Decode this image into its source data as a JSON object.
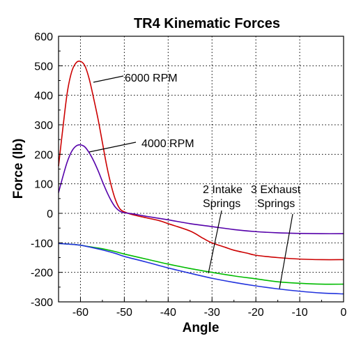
{
  "chart_data": {
    "type": "line",
    "title": "TR4 Kinematic Forces",
    "xlabel": "Angle",
    "ylabel": "Force (lb)",
    "xlim": [
      -65,
      0
    ],
    "ylim": [
      -300,
      600
    ],
    "xticks": [
      -60,
      -50,
      -40,
      -30,
      -20,
      -10,
      0
    ],
    "yticks": [
      -300,
      -200,
      -100,
      0,
      100,
      200,
      300,
      400,
      500,
      600
    ],
    "grid": true,
    "series": [
      {
        "name": "6000 RPM",
        "color": "#cc0000",
        "x": [
          -65,
          -64,
          -63,
          -62,
          -61,
          -60,
          -59,
          -58,
          -57,
          -56,
          -55,
          -54,
          -53,
          -52,
          -51,
          -50,
          -48,
          -45,
          -42,
          -40,
          -35,
          -32,
          -30,
          -27,
          -25,
          -22,
          -20,
          -15,
          -10,
          -5,
          0
        ],
        "y": [
          160,
          290,
          410,
          480,
          510,
          515,
          500,
          455,
          390,
          320,
          240,
          160,
          95,
          45,
          15,
          5,
          -5,
          -15,
          -25,
          -35,
          -60,
          -85,
          -100,
          -115,
          -125,
          -135,
          -142,
          -150,
          -155,
          -157,
          -157
        ]
      },
      {
        "name": "4000 RPM",
        "color": "#5500aa",
        "x": [
          -65,
          -64,
          -63,
          -62,
          -61,
          -60,
          -59,
          -58,
          -57,
          -56,
          -55,
          -54,
          -53,
          -52,
          -51,
          -50,
          -48,
          -45,
          -40,
          -35,
          -30,
          -25,
          -20,
          -15,
          -10,
          -5,
          0
        ],
        "y": [
          70,
          125,
          175,
          210,
          228,
          232,
          225,
          205,
          178,
          145,
          108,
          73,
          43,
          20,
          7,
          2,
          -2,
          -10,
          -22,
          -35,
          -45,
          -55,
          -62,
          -66,
          -68,
          -69,
          -69
        ]
      },
      {
        "name": "2 Intake Springs",
        "color": "#00bb00",
        "x": [
          -65,
          -62,
          -60,
          -58,
          -55,
          -52,
          -50,
          -45,
          -40,
          -35,
          -30,
          -25,
          -20,
          -15,
          -10,
          -5,
          0
        ],
        "y": [
          -102,
          -105,
          -108,
          -113,
          -120,
          -130,
          -138,
          -155,
          -172,
          -187,
          -200,
          -212,
          -222,
          -232,
          -237,
          -240,
          -240
        ]
      },
      {
        "name": "3 Exhaust Springs",
        "color": "#2233dd",
        "x": [
          -65,
          -62,
          -60,
          -58,
          -55,
          -52,
          -50,
          -45,
          -40,
          -35,
          -30,
          -25,
          -20,
          -15,
          -10,
          -5,
          0
        ],
        "y": [
          -102,
          -105,
          -108,
          -114,
          -124,
          -136,
          -146,
          -165,
          -185,
          -203,
          -220,
          -234,
          -246,
          -256,
          -264,
          -270,
          -273
        ]
      }
    ],
    "annotations": [
      {
        "lines": [
          "6000 RPM"
        ]
      },
      {
        "lines": [
          "4000 RPM"
        ]
      },
      {
        "lines": [
          "2 Intake",
          "Springs"
        ]
      },
      {
        "lines": [
          "3 Exhaust",
          "Springs"
        ]
      }
    ]
  }
}
